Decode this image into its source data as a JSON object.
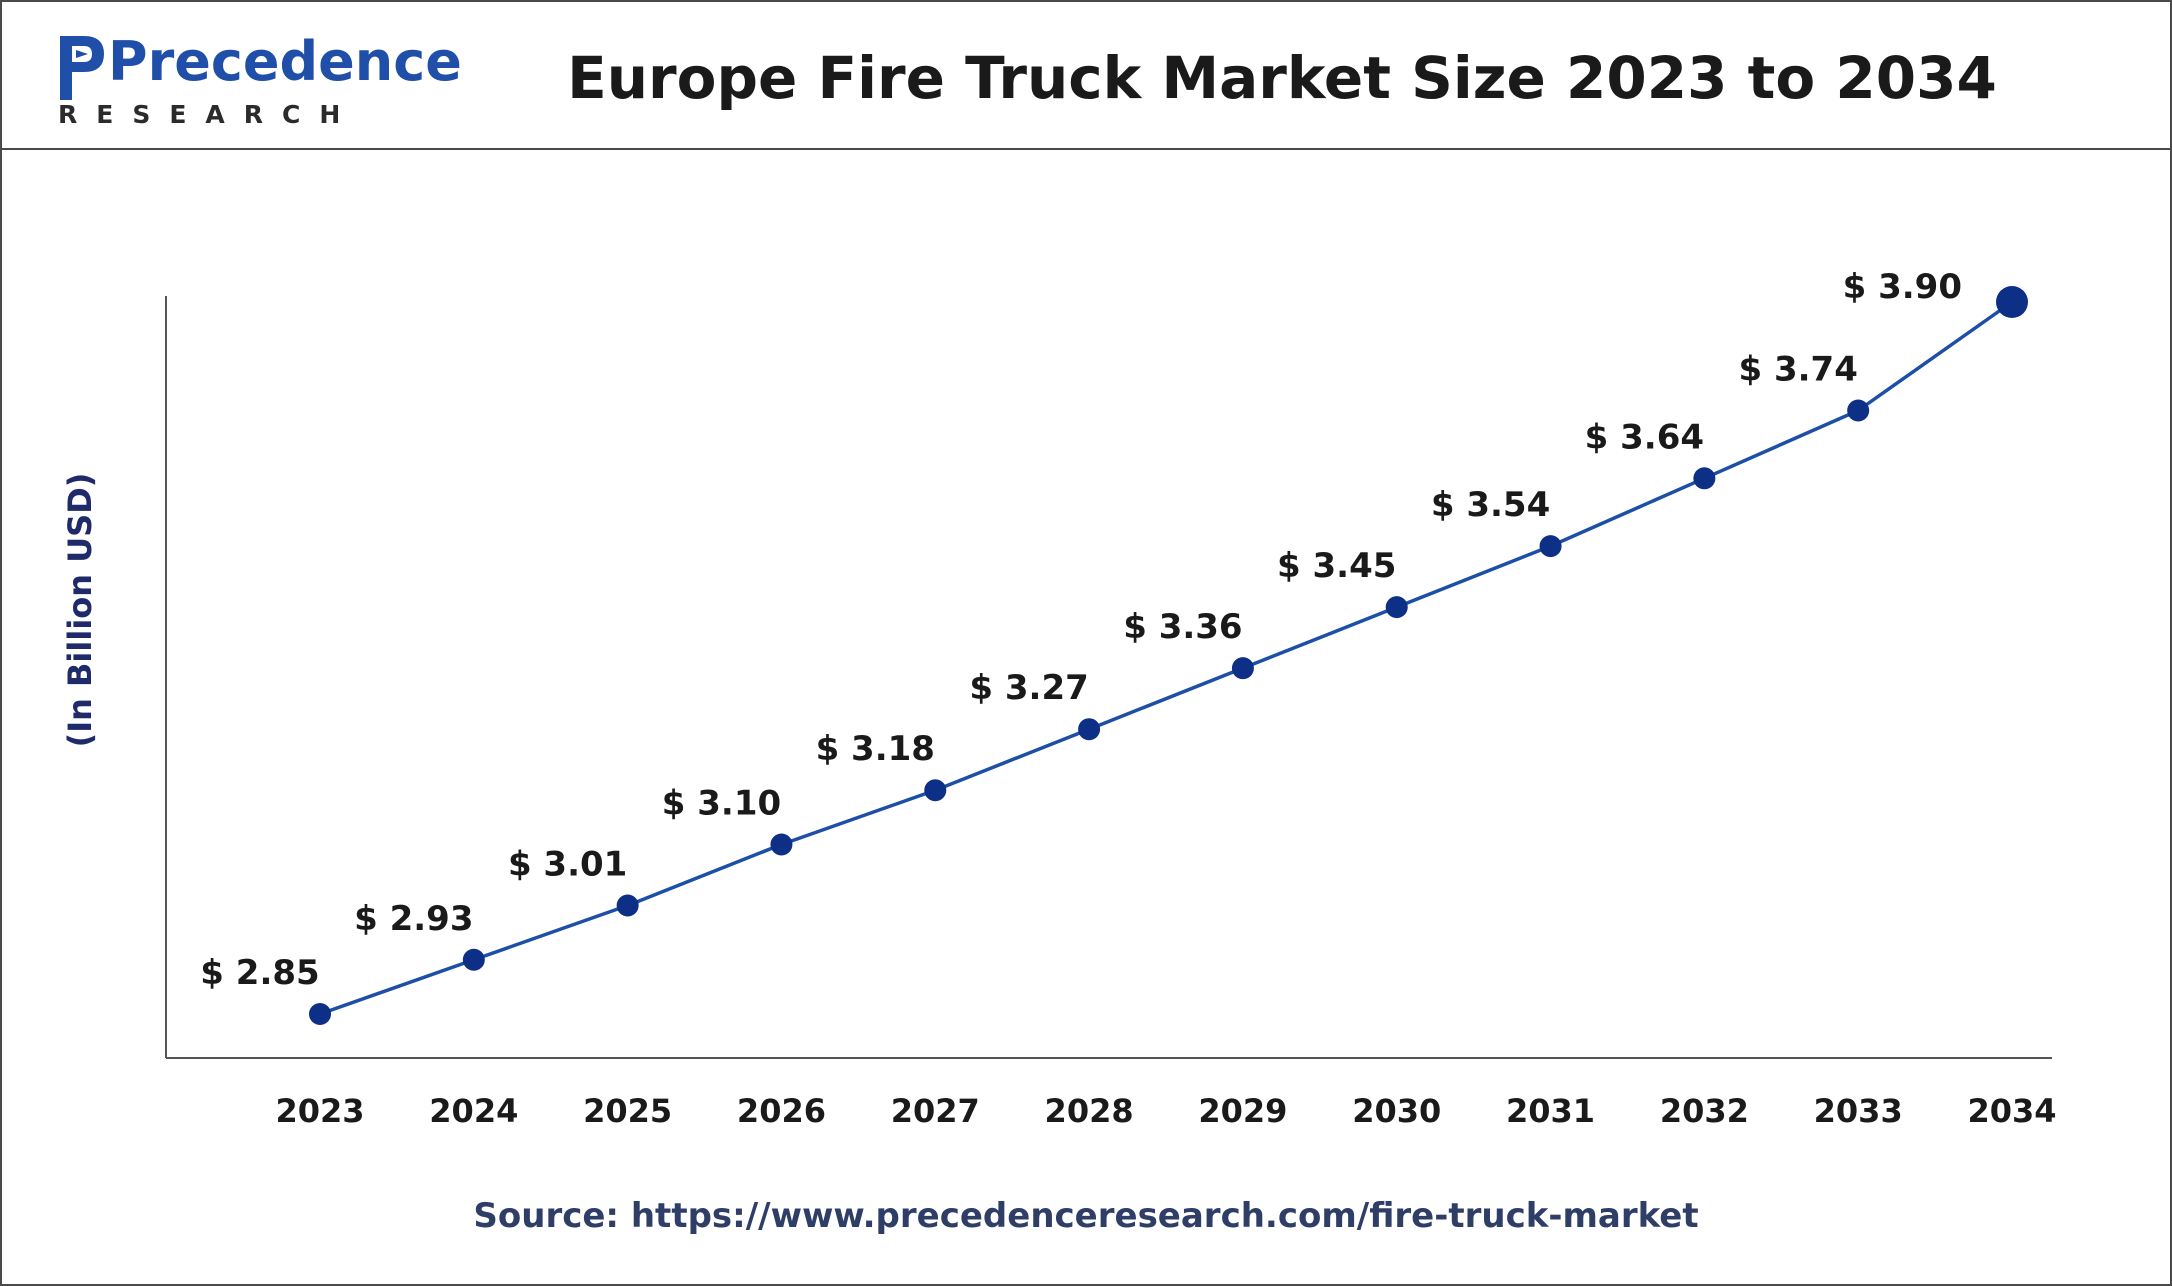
{
  "header": {
    "logo_word": "Precedence",
    "logo_sub": "RESEARCH",
    "title": "Europe Fire Truck Market Size 2023 to 2034"
  },
  "colors": {
    "line": "#1c4fa5",
    "marker": "#0d2f86",
    "axis": "#555555",
    "logo_blue": "#1f4fa8"
  },
  "icons": {
    "logo": "precedence-research-logo-icon"
  },
  "source": "Source: https://www.precedenceresearch.com/fire-truck-market",
  "chart_data": {
    "type": "line",
    "title": "Europe Fire Truck Market Size 2023 to 2034",
    "xlabel": "",
    "ylabel": "(In Billion USD)",
    "categories": [
      "2023",
      "2024",
      "2025",
      "2026",
      "2027",
      "2028",
      "2029",
      "2030",
      "2031",
      "2032",
      "2033",
      "2034"
    ],
    "values": [
      2.85,
      2.93,
      3.01,
      3.1,
      3.18,
      3.27,
      3.36,
      3.45,
      3.54,
      3.64,
      3.74,
      3.9
    ],
    "data_labels": [
      "$ 2.85",
      "$ 2.93",
      "$ 3.01",
      "$ 3.10",
      "$ 3.18",
      "$ 3.27",
      "$ 3.36",
      "$ 3.45",
      "$ 3.54",
      "$ 3.64",
      "$ 3.74",
      "$ 3.90"
    ],
    "ylim": [
      2.5,
      4.0
    ],
    "grid": false,
    "legend": "none"
  }
}
